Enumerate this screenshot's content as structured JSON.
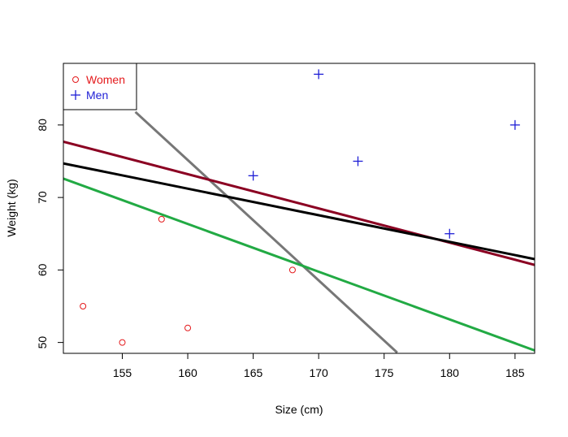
{
  "chart_data": {
    "type": "scatter",
    "title": "",
    "xlabel": "Size (cm)",
    "ylabel": "Weight (kg)",
    "xlim": [
      150.5,
      186.5
    ],
    "ylim": [
      48.5,
      88.5
    ],
    "x_ticks": [
      155,
      160,
      165,
      170,
      175,
      180,
      185
    ],
    "y_ticks": [
      50,
      60,
      70,
      80
    ],
    "legend_position": "top-left",
    "series": [
      {
        "name": "Women",
        "marker": "circle",
        "color": "#e41a1c",
        "points": [
          {
            "x": 152,
            "y": 55
          },
          {
            "x": 155,
            "y": 50
          },
          {
            "x": 158,
            "y": 67
          },
          {
            "x": 160,
            "y": 52
          },
          {
            "x": 168,
            "y": 60
          }
        ]
      },
      {
        "name": "Men",
        "marker": "plus",
        "color": "#1f1fd6",
        "points": [
          {
            "x": 165,
            "y": 73
          },
          {
            "x": 170,
            "y": 87
          },
          {
            "x": 173,
            "y": 75
          },
          {
            "x": 180,
            "y": 65
          },
          {
            "x": 185,
            "y": 80
          }
        ]
      }
    ],
    "lines": [
      {
        "color": "#777777",
        "stroke_width": 3,
        "x1": 156.0,
        "y1": 81.8,
        "x2": 176.0,
        "y2": 48.6
      },
      {
        "color": "#8b0022",
        "stroke_width": 3,
        "x1": 150.5,
        "y1": 77.7,
        "x2": 186.5,
        "y2": 60.7
      },
      {
        "color": "#000000",
        "stroke_width": 3,
        "x1": 150.5,
        "y1": 74.7,
        "x2": 186.5,
        "y2": 61.5
      },
      {
        "color": "#22aa44",
        "stroke_width": 3,
        "x1": 150.5,
        "y1": 72.6,
        "x2": 186.5,
        "y2": 48.9
      }
    ],
    "grid": false
  }
}
